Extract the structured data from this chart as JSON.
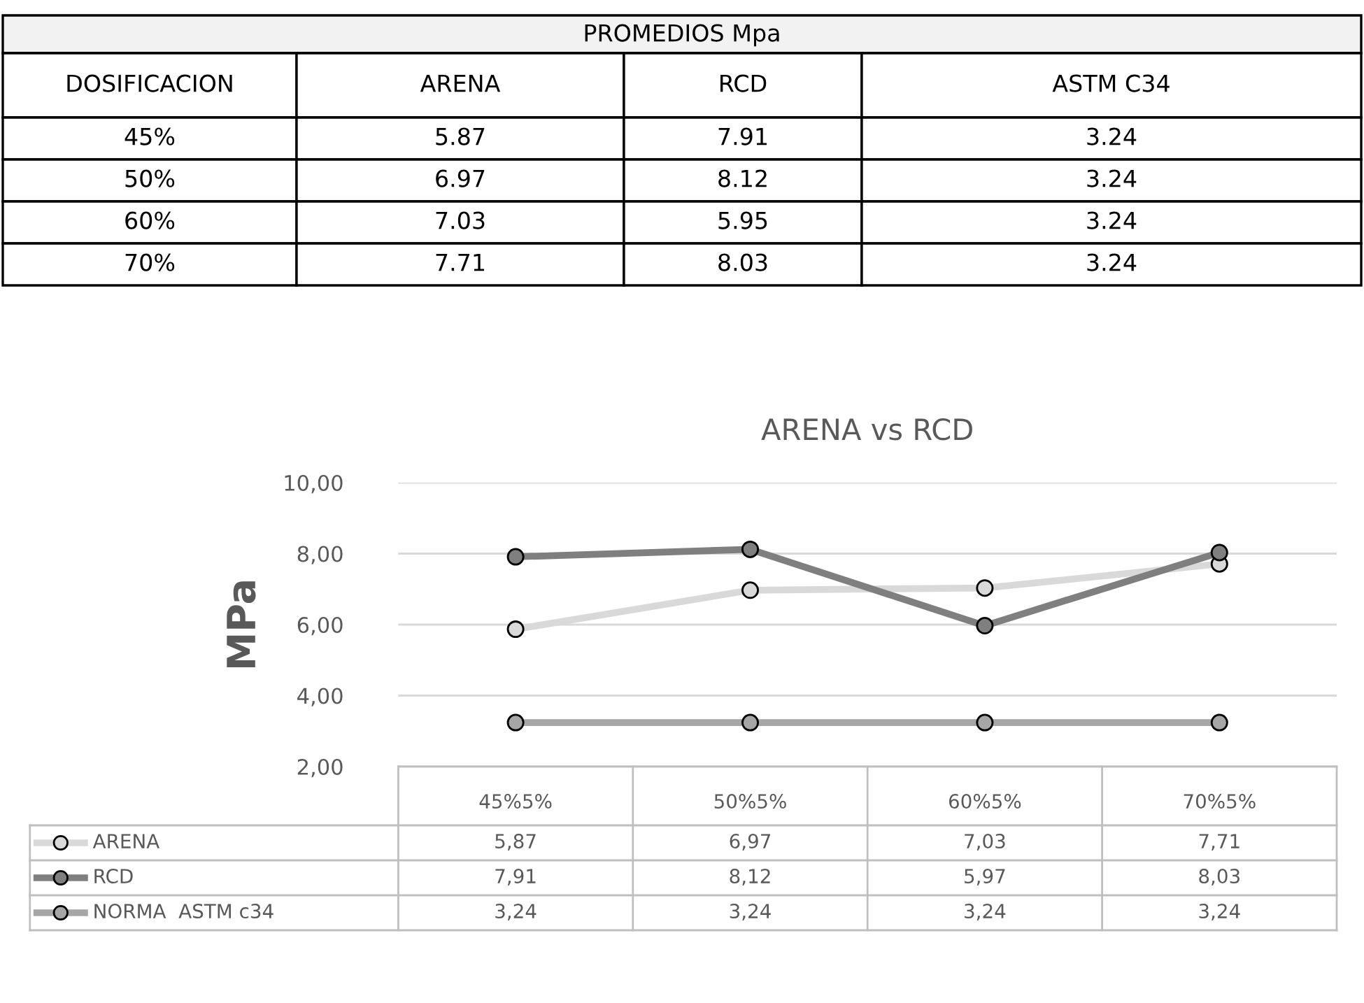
{
  "chart_data": [
    {
      "type": "other",
      "title": "PROMEDIOS Mpa",
      "categories": [
        "DOSIFICACION",
        "ARENA",
        "RCD",
        "ASTM C34"
      ],
      "annotations": [
        "45%",
        "5.87",
        "7.91",
        "3.24",
        "50%",
        "6.97",
        "8.12",
        "3.24",
        "60%",
        "7.03",
        "5.95",
        "3.24",
        "70%",
        "7.71",
        "8.03",
        "3.24"
      ]
    },
    {
      "type": "line",
      "title": "ARENA vs RCD",
      "ylabel": "MPa",
      "categories": [
        "45%5%",
        "50%5%",
        "60%5%",
        "70%5%"
      ],
      "ylim": [
        2,
        10
      ],
      "yticks": [
        {
          "value": 2,
          "label": "2,00"
        },
        {
          "value": 4,
          "label": "4,00"
        },
        {
          "value": 6,
          "label": "6,00"
        },
        {
          "value": 8,
          "label": "8,00"
        },
        {
          "value": 10,
          "label": "10,00"
        }
      ],
      "grid": "y",
      "legend": "bottom",
      "marker": "circle",
      "line_style": "solid",
      "series": [
        {
          "name": "ARENA",
          "color": "#d9d9d9",
          "values": [
            5.87,
            6.97,
            7.03,
            7.71
          ],
          "value_labels": [
            "5,87",
            "6,97",
            "7,03",
            "7,71"
          ]
        },
        {
          "name": "RCD",
          "color": "#7f7f7f",
          "values": [
            7.91,
            8.12,
            5.97,
            8.03
          ],
          "value_labels": [
            "7,91",
            "8,12",
            "5,97",
            "8,03"
          ]
        },
        {
          "name": "NORMA  ASTM c34",
          "color": "#a6a6a6",
          "values": [
            3.24,
            3.24,
            3.24,
            3.24
          ],
          "value_labels": [
            "3,24",
            "3,24",
            "3,24",
            "3,24"
          ]
        }
      ]
    }
  ]
}
